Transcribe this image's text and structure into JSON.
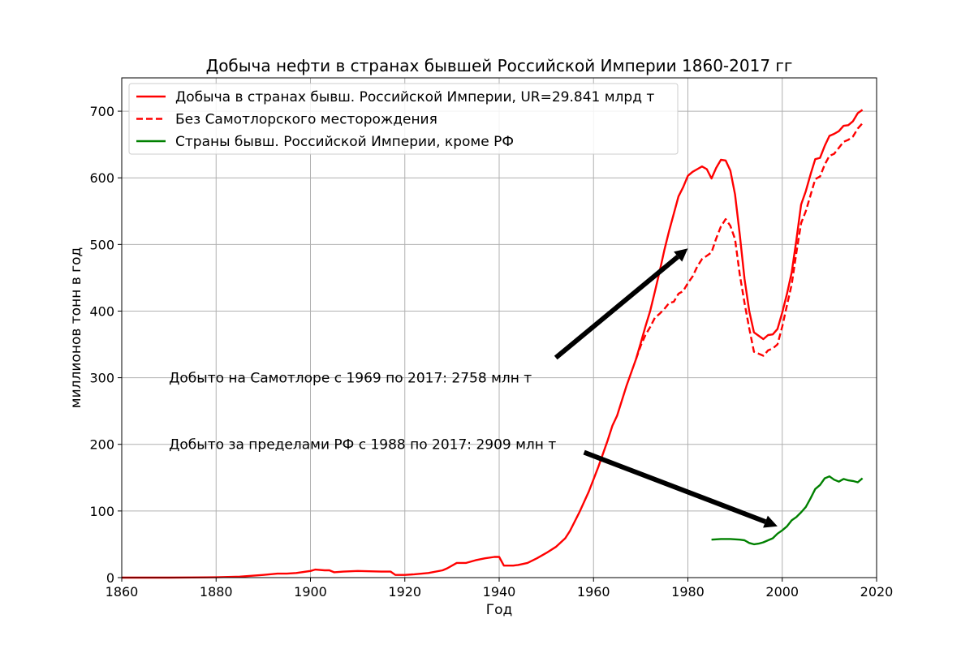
{
  "chart_data": {
    "type": "line",
    "title": "Добыча нефти в странах бывшей Российской Империи 1860-2017 гг",
    "xlabel": "Год",
    "ylabel": "миллионов тонн в год",
    "xlim": [
      1860,
      2020
    ],
    "ylim": [
      0,
      750
    ],
    "x_ticks": [
      1860,
      1880,
      1900,
      1920,
      1940,
      1960,
      1980,
      2000,
      2020
    ],
    "y_ticks": [
      0,
      100,
      200,
      300,
      400,
      500,
      600,
      700
    ],
    "grid": true,
    "legend_position": "top-left",
    "series": [
      {
        "name": "Добыча в странах бывш. Российской Империи, UR=29.841 млрд т",
        "color": "#ff0000",
        "style": "solid",
        "points": [
          [
            1860,
            0
          ],
          [
            1870,
            0
          ],
          [
            1875,
            0.3
          ],
          [
            1880,
            0.5
          ],
          [
            1885,
            1.5
          ],
          [
            1890,
            4
          ],
          [
            1893,
            6
          ],
          [
            1895,
            6
          ],
          [
            1897,
            7
          ],
          [
            1900,
            10
          ],
          [
            1901,
            12
          ],
          [
            1903,
            11
          ],
          [
            1904,
            11
          ],
          [
            1905,
            8
          ],
          [
            1907,
            9
          ],
          [
            1910,
            10
          ],
          [
            1915,
            9
          ],
          [
            1917,
            9
          ],
          [
            1918,
            4
          ],
          [
            1920,
            4
          ],
          [
            1922,
            5
          ],
          [
            1925,
            7
          ],
          [
            1928,
            11
          ],
          [
            1929,
            14
          ],
          [
            1931,
            22
          ],
          [
            1933,
            22
          ],
          [
            1935,
            26
          ],
          [
            1937,
            29
          ],
          [
            1939,
            31
          ],
          [
            1940,
            31
          ],
          [
            1941,
            18
          ],
          [
            1943,
            18
          ],
          [
            1944,
            19
          ],
          [
            1946,
            22
          ],
          [
            1948,
            29
          ],
          [
            1950,
            37
          ],
          [
            1952,
            46
          ],
          [
            1954,
            59
          ],
          [
            1955,
            70
          ],
          [
            1957,
            98
          ],
          [
            1959,
            129
          ],
          [
            1961,
            166
          ],
          [
            1963,
            206
          ],
          [
            1964,
            228
          ],
          [
            1965,
            243
          ],
          [
            1967,
            288
          ],
          [
            1969,
            328
          ],
          [
            1970,
            352
          ],
          [
            1971,
            377
          ],
          [
            1972,
            400
          ],
          [
            1973,
            429
          ],
          [
            1974,
            459
          ],
          [
            1975,
            491
          ],
          [
            1976,
            520
          ],
          [
            1977,
            546
          ],
          [
            1978,
            572
          ],
          [
            1979,
            586
          ],
          [
            1980,
            603
          ],
          [
            1981,
            609
          ],
          [
            1982,
            613
          ],
          [
            1983,
            617
          ],
          [
            1984,
            613
          ],
          [
            1985,
            599
          ],
          [
            1986,
            615
          ],
          [
            1987,
            627
          ],
          [
            1988,
            626
          ],
          [
            1989,
            611
          ],
          [
            1990,
            575
          ],
          [
            1991,
            515
          ],
          [
            1992,
            448
          ],
          [
            1993,
            400
          ],
          [
            1994,
            368
          ],
          [
            1995,
            363
          ],
          [
            1996,
            358
          ],
          [
            1997,
            364
          ],
          [
            1998,
            365
          ],
          [
            1999,
            373
          ],
          [
            2000,
            398
          ],
          [
            2001,
            426
          ],
          [
            2002,
            458
          ],
          [
            2003,
            507
          ],
          [
            2004,
            560
          ],
          [
            2005,
            580
          ],
          [
            2006,
            605
          ],
          [
            2007,
            628
          ],
          [
            2008,
            630
          ],
          [
            2009,
            648
          ],
          [
            2010,
            663
          ],
          [
            2011,
            666
          ],
          [
            2012,
            670
          ],
          [
            2013,
            678
          ],
          [
            2014,
            679
          ],
          [
            2015,
            685
          ],
          [
            2016,
            697
          ],
          [
            2017,
            702
          ]
        ]
      },
      {
        "name": "Без Самотлорского месторождения",
        "color": "#ff0000",
        "style": "dashed",
        "points": [
          [
            1969,
            328
          ],
          [
            1970,
            348
          ],
          [
            1971,
            364
          ],
          [
            1972,
            376
          ],
          [
            1973,
            390
          ],
          [
            1974,
            396
          ],
          [
            1975,
            403
          ],
          [
            1976,
            412
          ],
          [
            1977,
            414
          ],
          [
            1978,
            426
          ],
          [
            1979,
            430
          ],
          [
            1980,
            442
          ],
          [
            1981,
            452
          ],
          [
            1982,
            467
          ],
          [
            1983,
            478
          ],
          [
            1984,
            483
          ],
          [
            1985,
            488
          ],
          [
            1986,
            509
          ],
          [
            1987,
            527
          ],
          [
            1988,
            538
          ],
          [
            1989,
            528
          ],
          [
            1990,
            508
          ],
          [
            1991,
            455
          ],
          [
            1992,
            412
          ],
          [
            1993,
            374
          ],
          [
            1994,
            339
          ],
          [
            1995,
            336
          ],
          [
            1996,
            333
          ],
          [
            1997,
            341
          ],
          [
            1998,
            344
          ],
          [
            1999,
            350
          ],
          [
            2000,
            377
          ],
          [
            2001,
            409
          ],
          [
            2002,
            440
          ],
          [
            2003,
            488
          ],
          [
            2004,
            532
          ],
          [
            2005,
            550
          ],
          [
            2006,
            574
          ],
          [
            2007,
            598
          ],
          [
            2008,
            602
          ],
          [
            2009,
            620
          ],
          [
            2010,
            633
          ],
          [
            2011,
            636
          ],
          [
            2012,
            645
          ],
          [
            2013,
            654
          ],
          [
            2014,
            657
          ],
          [
            2015,
            662
          ],
          [
            2016,
            674
          ],
          [
            2017,
            682
          ]
        ]
      },
      {
        "name": "Страны бывш. Российской Империи, кроме РФ",
        "color": "#008000",
        "style": "solid",
        "points": [
          [
            1985,
            57
          ],
          [
            1987,
            58
          ],
          [
            1989,
            58
          ],
          [
            1991,
            57
          ],
          [
            1992,
            56
          ],
          [
            1993,
            52
          ],
          [
            1994,
            50
          ],
          [
            1995,
            51
          ],
          [
            1996,
            53
          ],
          [
            1997,
            56
          ],
          [
            1998,
            59
          ],
          [
            1999,
            66
          ],
          [
            2000,
            71
          ],
          [
            2001,
            77
          ],
          [
            2002,
            86
          ],
          [
            2003,
            91
          ],
          [
            2004,
            98
          ],
          [
            2005,
            106
          ],
          [
            2006,
            119
          ],
          [
            2007,
            133
          ],
          [
            2008,
            139
          ],
          [
            2009,
            149
          ],
          [
            2010,
            152
          ],
          [
            2011,
            147
          ],
          [
            2012,
            144
          ],
          [
            2013,
            148
          ],
          [
            2014,
            146
          ],
          [
            2015,
            145
          ],
          [
            2016,
            143
          ],
          [
            2017,
            149
          ]
        ]
      }
    ],
    "annotations": [
      {
        "text": "Добыто на Самотлоре с 1969 по 2017: 2758 млн т",
        "x": 1870,
        "y": 300,
        "arrow_from": [
          1952,
          330
        ],
        "arrow_to": [
          1980,
          494
        ]
      },
      {
        "text": "Добыто за пределами РФ с 1988 по 2017: 2909 млн т",
        "x": 1870,
        "y": 200,
        "arrow_from": [
          1958,
          188
        ],
        "arrow_to": [
          1999,
          77
        ]
      }
    ]
  }
}
